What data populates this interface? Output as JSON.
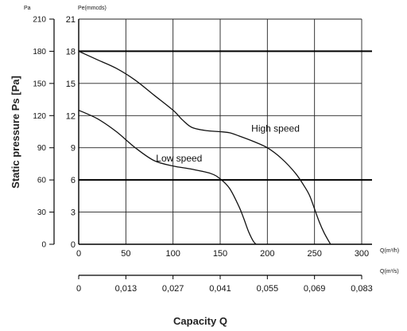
{
  "chart_data": {
    "type": "line",
    "title": "",
    "xlabel": "Capacity Q",
    "ylabel": "Static pressure Ps [Pa]",
    "xlim": [
      0,
      300
    ],
    "ylim": [
      0,
      210
    ],
    "grid": true,
    "x_axis_primary": {
      "unit": "Q(m³/h)",
      "ticks": [
        0,
        50,
        100,
        150,
        200,
        250,
        300
      ],
      "tick_labels": [
        "0",
        "50",
        "100",
        "150",
        "200",
        "250",
        "300"
      ]
    },
    "x_axis_secondary": {
      "unit": "Q(m³/s)",
      "tick_labels": [
        "0",
        "0,013",
        "0,027",
        "0,041",
        "0,055",
        "0,069",
        "0,083"
      ]
    },
    "y_axis_outer": {
      "unit": "Pa",
      "ticks": [
        0,
        30,
        60,
        90,
        120,
        150,
        180,
        210
      ],
      "tick_labels": [
        "0",
        "30",
        "60",
        "90",
        "120",
        "150",
        "180",
        "210"
      ]
    },
    "y_axis_inner": {
      "unit": "Pe(mmcds)",
      "tick_labels": [
        "0",
        "3",
        "6",
        "9",
        "12",
        "15",
        "18",
        "21"
      ]
    },
    "reference_lines": [
      180,
      60
    ],
    "series": [
      {
        "name": "High speed",
        "x": [
          0,
          20,
          40,
          60,
          80,
          100,
          110,
          120,
          135,
          150,
          160,
          170,
          185,
          200,
          215,
          230,
          240,
          245,
          250,
          255,
          260,
          265,
          267
        ],
        "y": [
          180,
          172,
          164,
          153,
          139,
          125,
          116,
          109,
          106,
          105,
          104,
          101,
          96,
          90,
          80,
          66,
          53,
          45,
          33,
          21,
          11,
          3,
          0
        ]
      },
      {
        "name": "Low speed",
        "x": [
          0,
          20,
          40,
          60,
          80,
          100,
          120,
          140,
          150,
          160,
          170,
          175,
          180,
          185,
          188
        ],
        "y": [
          125,
          117,
          105,
          90,
          78,
          73,
          70,
          66,
          61,
          52,
          35,
          24,
          12,
          3,
          0
        ]
      }
    ],
    "annotations": [
      {
        "text": "High speed",
        "x": 183,
        "y": 105
      },
      {
        "text": "Low speed",
        "x": 82,
        "y": 77
      }
    ]
  }
}
